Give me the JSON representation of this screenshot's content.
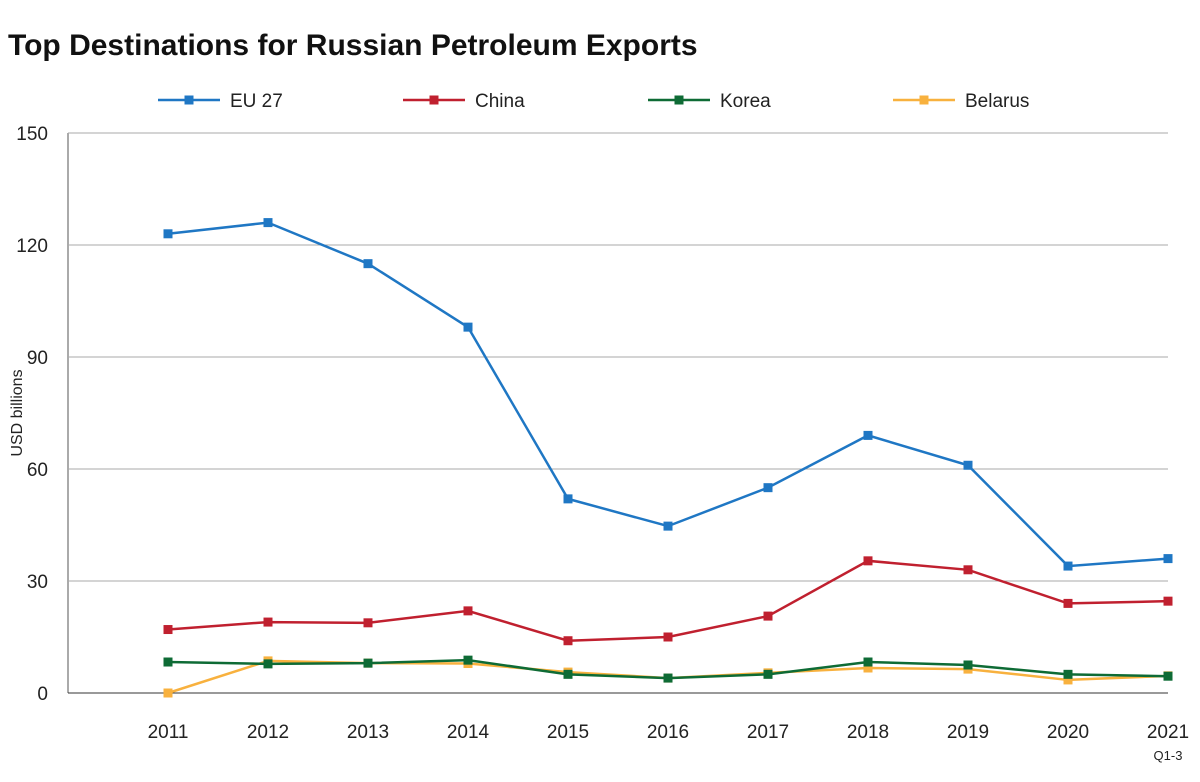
{
  "chart_data": {
    "type": "line",
    "title": "Top Destinations for Russian Petroleum Exports",
    "ylabel": "USD billions",
    "xlabel": "",
    "x": [
      "2011",
      "2012",
      "2013",
      "2014",
      "2015",
      "2016",
      "2017",
      "2018",
      "2019",
      "2020",
      "2021"
    ],
    "x_sublabels": {
      "2021": "Q1-3"
    },
    "ylim": [
      0,
      150
    ],
    "yticks": [
      0,
      30,
      60,
      90,
      120,
      150
    ],
    "grid": true,
    "legend_position": "top",
    "series": [
      {
        "name": "EU 27",
        "color": "#1f77c4",
        "values": [
          123,
          126,
          115,
          98,
          52,
          44.7,
          55,
          69,
          61,
          34,
          36
        ]
      },
      {
        "name": "China",
        "color": "#c0202f",
        "values": [
          17,
          19,
          18.8,
          22,
          14,
          15,
          20.6,
          35.4,
          33,
          24,
          24.6
        ]
      },
      {
        "name": "Korea",
        "color": "#0e6b35",
        "values": [
          8.3,
          7.8,
          8,
          8.8,
          5,
          4,
          5,
          8.3,
          7.5,
          5,
          4.5
        ]
      },
      {
        "name": "Belarus",
        "color": "#f8b13e",
        "values": [
          0,
          8.6,
          8,
          7.9,
          5.6,
          4,
          5.4,
          6.7,
          6.4,
          3.5,
          4.6
        ]
      }
    ]
  }
}
